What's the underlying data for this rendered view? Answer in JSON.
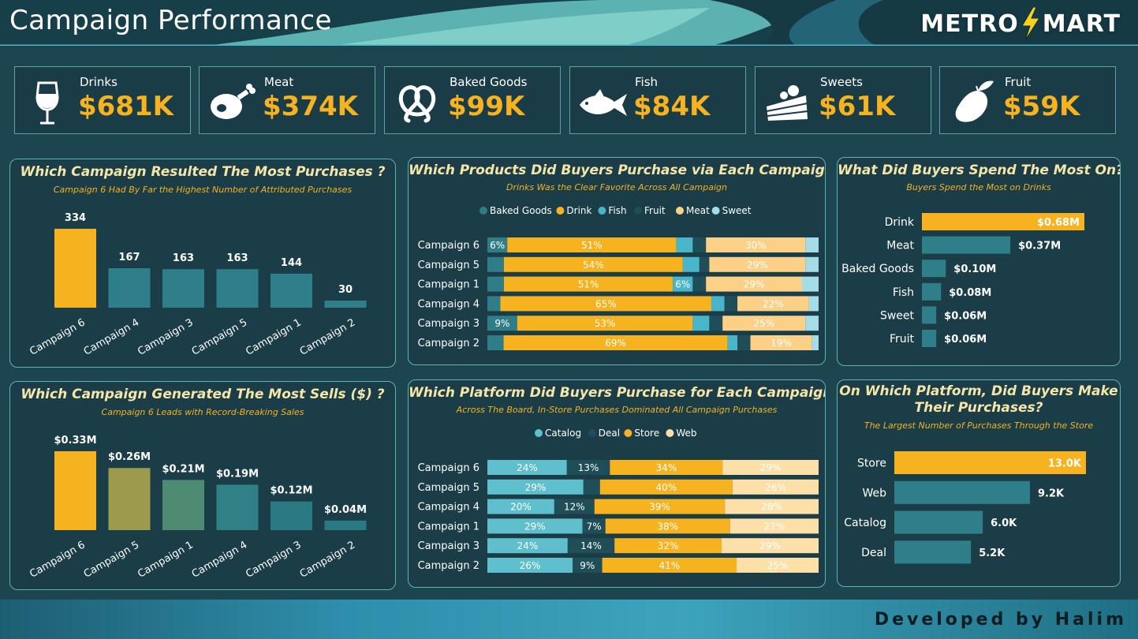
{
  "header": {
    "title": "Campaign Performance",
    "logo_left": "METRO",
    "logo_right": "MART"
  },
  "colors": {
    "accent": "#f6b21f",
    "teal": "#2e7f89",
    "panel_bg": "#1b3d47",
    "border": "#5ab3b9"
  },
  "kpis": [
    {
      "label": "Drinks",
      "value": "$681K",
      "icon": "wine-glass-icon"
    },
    {
      "label": "Meat",
      "value": "$374K",
      "icon": "meat-leg-icon"
    },
    {
      "label": "Baked Goods",
      "value": "$99K",
      "icon": "pretzel-icon"
    },
    {
      "label": "Fish",
      "value": "$84K",
      "icon": "fish-icon"
    },
    {
      "label": "Sweets",
      "value": "$61K",
      "icon": "cake-slice-icon"
    },
    {
      "label": "Fruit",
      "value": "$59K",
      "icon": "mango-icon"
    }
  ],
  "panels": {
    "p1": {
      "title": "Which Campaign Resulted The Most Purchases ?",
      "subtitle": "Campaign 6 Had By Far the Highest Number of Attributed Purchases"
    },
    "p2": {
      "title": "Which Products Did Buyers Purchase via Each Campaign?",
      "subtitle": "Drinks Was the Clear Favorite Across All Campaign"
    },
    "p3": {
      "title": "What Did Buyers Spend The Most On?",
      "subtitle": "Buyers Spend the Most on Drinks"
    },
    "p4": {
      "title": "Which Campaign Generated The Most Sells ($) ?",
      "subtitle": "Campaign 6 Leads with Record-Breaking Sales"
    },
    "p5": {
      "title": "Which Platform Did Buyers Purchase for Each Campaign?",
      "subtitle": "Across The Board, In-Store Purchases Dominated All Campaign Purchases"
    },
    "p6": {
      "title_line1": "On Which Platform, Did Buyers Make",
      "title_line2": "Their Purchases?",
      "subtitle": "The Largest Number of Purchases Through the Store"
    }
  },
  "chart_data": [
    {
      "id": "purchases_by_campaign",
      "type": "bar",
      "categories": [
        "Campaign 6",
        "Campaign 4",
        "Campaign 3",
        "Campaign 5",
        "Campaign 1",
        "Campaign 2"
      ],
      "values": [
        334,
        167,
        163,
        163,
        144,
        30
      ],
      "labels": [
        "334",
        "167",
        "163",
        "163",
        "144",
        "30"
      ],
      "ylim": [
        0,
        334
      ]
    },
    {
      "id": "products_by_campaign",
      "type": "bar",
      "stacked": "100%",
      "orientation": "horizontal",
      "legend": [
        "Baked Goods",
        "Drink",
        "Fish",
        "Fruit",
        "Meat",
        "Sweet"
      ],
      "legend_colors": [
        "#2f7d87",
        "#f6b21f",
        "#49b5c8",
        "#1f4e59",
        "#fdd088",
        "#a4dde8"
      ],
      "categories": [
        "Campaign 6",
        "Campaign 5",
        "Campaign 1",
        "Campaign 4",
        "Campaign 3",
        "Campaign 2"
      ],
      "series": [
        {
          "name": "Baked Goods",
          "values": [
            6,
            5,
            5,
            4,
            9,
            5
          ]
        },
        {
          "name": "Drink",
          "values": [
            51,
            54,
            51,
            65,
            53,
            69
          ]
        },
        {
          "name": "Fish",
          "values": [
            5,
            5,
            6,
            4,
            5,
            3
          ]
        },
        {
          "name": "Fruit",
          "values": [
            4,
            3,
            4,
            4,
            4,
            4
          ]
        },
        {
          "name": "Meat",
          "values": [
            30,
            29,
            29,
            22,
            25,
            19
          ]
        },
        {
          "name": "Sweet",
          "values": [
            4,
            4,
            5,
            3,
            4,
            2
          ]
        }
      ],
      "labels": [
        [
          "6%",
          "51%",
          "",
          "",
          "30%",
          ""
        ],
        [
          "",
          "54%",
          "",
          "",
          "29%",
          ""
        ],
        [
          "",
          "51%",
          "6%",
          "",
          "29%",
          ""
        ],
        [
          "",
          "65%",
          "",
          "",
          "22%",
          ""
        ],
        [
          "9%",
          "53%",
          "",
          "",
          "25%",
          ""
        ],
        [
          "",
          "69%",
          "",
          "",
          "19%",
          ""
        ]
      ]
    },
    {
      "id": "spend_by_product",
      "type": "bar",
      "orientation": "horizontal",
      "categories": [
        "Drink",
        "Meat",
        "Baked Goods",
        "Fish",
        "Sweet",
        "Fruit"
      ],
      "values": [
        0.68,
        0.37,
        0.1,
        0.08,
        0.06,
        0.06
      ],
      "labels": [
        "$0.68M",
        "$0.37M",
        "$0.10M",
        "$0.08M",
        "$0.06M",
        "$0.06M"
      ]
    },
    {
      "id": "sales_by_campaign",
      "type": "bar",
      "categories": [
        "Campaign 6",
        "Campaign 5",
        "Campaign 1",
        "Campaign 4",
        "Campaign 3",
        "Campaign 2"
      ],
      "values": [
        0.33,
        0.26,
        0.21,
        0.19,
        0.12,
        0.04
      ],
      "labels": [
        "$0.33M",
        "$0.26M",
        "$0.21M",
        "$0.19M",
        "$0.12M",
        "$0.04M"
      ],
      "colors": [
        "#f6b21f",
        "#9c9a4c",
        "#4f8a72",
        "#2f8187",
        "#2a7a84",
        "#2a7a84"
      ]
    },
    {
      "id": "platform_by_campaign",
      "type": "bar",
      "stacked": "100%",
      "orientation": "horizontal",
      "legend": [
        "Catalog",
        "Deal",
        "Store",
        "Web"
      ],
      "legend_colors": [
        "#5fbfcc",
        "#1f4e59",
        "#f6b21f",
        "#fde0a8"
      ],
      "categories": [
        "Campaign 6",
        "Campaign 5",
        "Campaign 4",
        "Campaign 1",
        "Campaign 3",
        "Campaign 2"
      ],
      "series": [
        {
          "name": "Catalog",
          "values": [
            24,
            29,
            20,
            29,
            24,
            26
          ]
        },
        {
          "name": "Deal",
          "values": [
            13,
            5,
            12,
            7,
            14,
            9
          ]
        },
        {
          "name": "Store",
          "values": [
            34,
            40,
            39,
            38,
            32,
            41
          ]
        },
        {
          "name": "Web",
          "values": [
            29,
            26,
            28,
            27,
            29,
            25
          ]
        }
      ],
      "labels": [
        [
          "24%",
          "13%",
          "34%",
          "29%"
        ],
        [
          "29%",
          "",
          "40%",
          "26%"
        ],
        [
          "20%",
          "12%",
          "39%",
          "28%"
        ],
        [
          "29%",
          "7%",
          "38%",
          "27%"
        ],
        [
          "24%",
          "14%",
          "32%",
          "29%"
        ],
        [
          "26%",
          "9%",
          "41%",
          "25%"
        ]
      ]
    },
    {
      "id": "purchases_by_platform",
      "type": "bar",
      "orientation": "horizontal",
      "categories": [
        "Store",
        "Web",
        "Catalog",
        "Deal"
      ],
      "values": [
        13.0,
        9.2,
        6.0,
        5.2
      ],
      "labels": [
        "13.0K",
        "9.2K",
        "6.0K",
        "5.2K"
      ]
    }
  ],
  "footer": {
    "text": "Developed by Halim"
  }
}
